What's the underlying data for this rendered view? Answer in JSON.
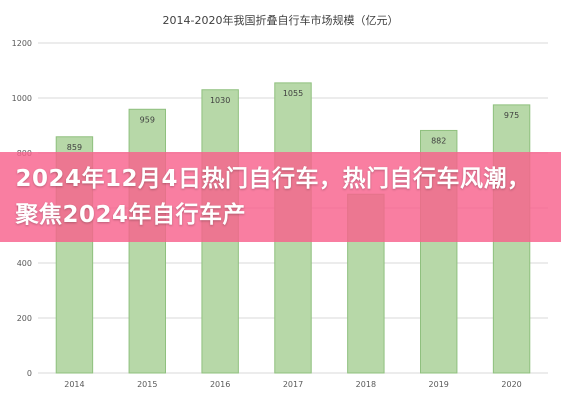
{
  "chart_data": {
    "type": "bar",
    "title": "2014-2020年我国折叠自行车市场规模（亿元）",
    "categories": [
      "2014",
      "2015",
      "2016",
      "2017",
      "2018",
      "2019",
      "2020"
    ],
    "values": [
      859,
      959,
      1030,
      1055,
      650,
      882,
      975
    ],
    "data_labels": [
      "859",
      "959",
      "1030",
      "1055",
      "",
      "882",
      "975"
    ],
    "ylim": [
      0,
      1200
    ],
    "yticks": [
      0,
      200,
      400,
      600,
      800,
      1000,
      1200
    ],
    "xlabel": "",
    "ylabel": "",
    "grid": true,
    "legend": "none",
    "bar_color": "#b7d8a8",
    "bar_edge_color": "#8fc07e"
  },
  "banner": {
    "text": "2024年12月4日热门自行车，热门自行车风潮，聚焦2024年自行车产",
    "color": "#f8628c"
  }
}
